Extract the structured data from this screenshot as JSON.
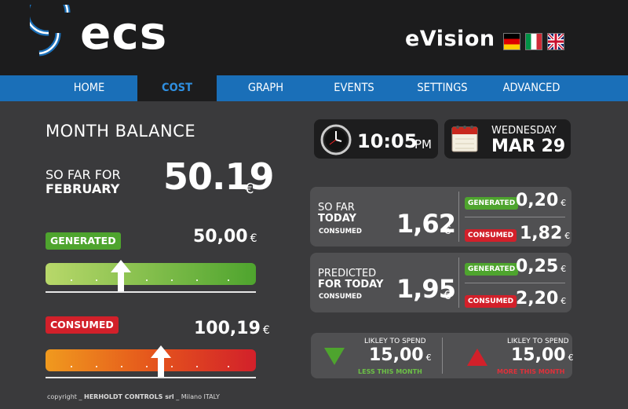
{
  "header": {
    "logo_text": "ecs",
    "app_title": "eVision",
    "languages": [
      "de-flag-icon",
      "it-flag-icon",
      "uk-flag-icon"
    ]
  },
  "nav": {
    "items": [
      {
        "label": "HOME",
        "active": false
      },
      {
        "label": "COST",
        "active": true
      },
      {
        "label": "GRAPH",
        "active": false
      },
      {
        "label": "EVENTS",
        "active": false
      },
      {
        "label": "SETTINGS",
        "active": false
      },
      {
        "label": "ADVANCED",
        "active": false
      }
    ]
  },
  "balance": {
    "title": "MONTH BALANCE",
    "so_far_for": "SO FAR FOR",
    "month": "FEBRUARY",
    "amount": "50.19",
    "currency": "€",
    "generated": {
      "label": "GENERATED",
      "amount": "50,00",
      "currency": "€",
      "level": 0.36
    },
    "consumed": {
      "label": "CONSUMED",
      "amount": "100,19",
      "currency": "€",
      "level": 0.55
    }
  },
  "clock": {
    "time": "10:05",
    "ampm": "PM",
    "icon": "clock-icon"
  },
  "calendar": {
    "weekday": "WEDNESDAY",
    "date": "MAR 29",
    "icon": "calendar-icon"
  },
  "today": {
    "label1": "SO FAR",
    "label2": "TODAY",
    "sub": "CONSUMED",
    "amount": "1,62",
    "currency": "€",
    "generated_label": "GENERATED",
    "generated_amount": "0,20",
    "consumed_label": "CONSUMED",
    "consumed_amount": "1,82"
  },
  "predicted": {
    "label1": "PREDICTED",
    "label2": "FOR TODAY",
    "sub": "CONSUMED",
    "amount": "1,95",
    "currency": "€",
    "generated_label": "GENERATED",
    "generated_amount": "0,25",
    "consumed_label": "CONSUMED",
    "consumed_amount": "2,20"
  },
  "likely": {
    "left": {
      "label": "LIKLEY TO SPEND",
      "amount": "15,00",
      "currency": "€",
      "sub": "LESS THIS MONTH"
    },
    "right": {
      "label": "LIKLEY TO SPEND",
      "amount": "15,00",
      "currency": "€",
      "sub": "MORE THIS MONTH"
    }
  },
  "footer": {
    "prefix": "copyright _",
    "company": "HERHOLDT CONTROLS srl",
    "suffix": "_ Milano ITALY"
  },
  "colors": {
    "accent": "#1a6fb8",
    "green": "#4ea42e",
    "red": "#d2202a",
    "background": "#3a3a3c"
  }
}
